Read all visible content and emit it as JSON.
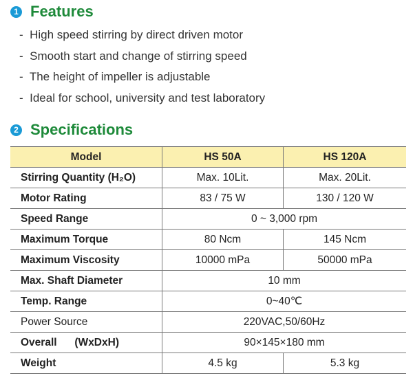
{
  "features": {
    "number": "1",
    "title": "Features",
    "items": [
      "High speed stirring by direct driven motor",
      "Smooth start and change of stirring speed",
      "The height of impeller is adjustable",
      "Ideal for  school, university and test laboratory"
    ]
  },
  "specifications": {
    "number": "2",
    "title": "Specifications",
    "header": [
      "Model",
      "HS 50A",
      "HS 120A"
    ],
    "rows": [
      {
        "label": "Stirring Quantity (H₂O)",
        "values": [
          "Max. 10Lit.",
          "Max. 20Lit."
        ]
      },
      {
        "label": "Motor Rating",
        "values": [
          "83 / 75 W",
          "130 / 120 W"
        ]
      },
      {
        "label": "Speed Range",
        "values": [
          "0 ~ 3,000 rpm"
        ]
      },
      {
        "label": "Maximum Torque",
        "values": [
          "80 Ncm",
          "145 Ncm"
        ]
      },
      {
        "label": "Maximum Viscosity",
        "values": [
          "10000 mPa",
          "50000 mPa"
        ]
      },
      {
        "label": "Max. Shaft Diameter",
        "values": [
          "10 mm"
        ]
      },
      {
        "label": "Temp. Range",
        "values": [
          "0~40℃"
        ]
      },
      {
        "label": "Power Source",
        "values": [
          "220VAC,50/60Hz"
        ],
        "plain": true
      },
      {
        "label": "Overall      (WxDxH)",
        "values": [
          "90×145×180 mm"
        ]
      },
      {
        "label": "Weight",
        "values": [
          "4.5 kg",
          "5.3 kg"
        ]
      }
    ]
  },
  "colors": {
    "heading": "#1e8a3a",
    "badge": "#1a9ad6",
    "header_bg": "#fbf0b0"
  }
}
